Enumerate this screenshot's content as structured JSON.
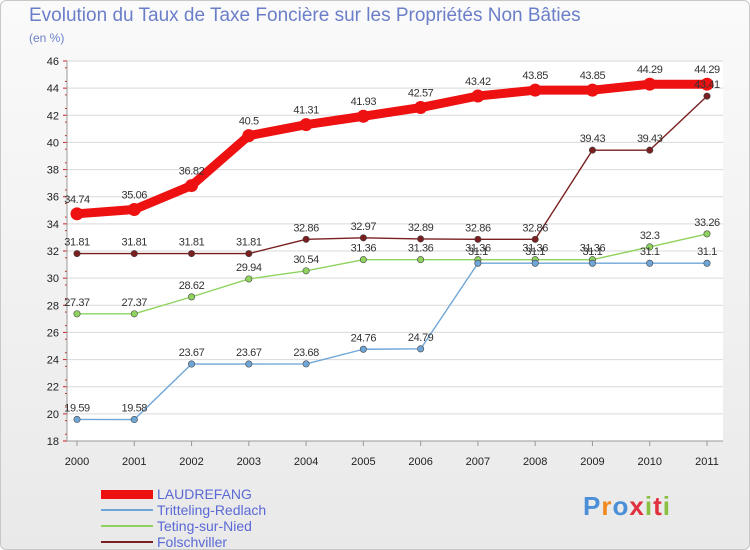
{
  "header": {
    "title": "Evolution du Taux de Taxe Foncière sur les Propriétés Non Bâties",
    "subtitle": "(en %)"
  },
  "logo": {
    "text": "Proxiti",
    "colors": [
      "#4a8fd8",
      "#f08a20",
      "#4a8fd8",
      "#e03040",
      "#8ac040",
      "#e03040",
      "#8ac040"
    ]
  },
  "chart_data": {
    "type": "line",
    "title": "Evolution du Taux de Taxe Foncière sur les Propriétés Non Bâties",
    "ylabel": "(en %)",
    "xlabel": "",
    "ylim": [
      18,
      46
    ],
    "yticks": [
      18,
      20,
      22,
      24,
      26,
      28,
      30,
      32,
      34,
      36,
      38,
      40,
      42,
      44,
      46
    ],
    "grid": "horizontal",
    "x": [
      "2000",
      "2001",
      "2002",
      "2003",
      "2004",
      "2005",
      "2006",
      "2007",
      "2008",
      "2009",
      "2010",
      "2011"
    ],
    "series": [
      {
        "name": "Folschviller",
        "color": "#7a1f1f",
        "width": 1.4,
        "values": [
          31.81,
          31.81,
          31.81,
          31.81,
          32.86,
          32.97,
          32.89,
          32.86,
          32.86,
          39.43,
          39.43,
          43.41
        ],
        "labels": [
          "31.81",
          "31.81",
          "31.81",
          "31.81",
          "32.86",
          "32.97",
          "32.89",
          "32.86",
          "32.86",
          "39.43",
          "39.43",
          "43.41"
        ]
      },
      {
        "name": "Teting-sur-Nied",
        "color": "#8fd35e",
        "width": 1.4,
        "values": [
          27.37,
          27.37,
          28.62,
          29.94,
          30.54,
          31.36,
          31.36,
          31.36,
          31.36,
          31.36,
          32.3,
          33.26
        ],
        "labels": [
          "27.37",
          "27.37",
          "28.62",
          "29.94",
          "30.54",
          "31.36",
          "31.36",
          "31.36",
          "31.36",
          "31.36",
          "32.3",
          "33.26"
        ]
      },
      {
        "name": "Tritteling-Redlach",
        "color": "#6fa6d8",
        "width": 1.4,
        "values": [
          19.59,
          19.58,
          23.67,
          23.67,
          23.68,
          24.76,
          24.79,
          31.1,
          31.1,
          31.1,
          31.1,
          31.1
        ],
        "labels": [
          "19.59",
          "19.58",
          "23.67",
          "23.67",
          "23.68",
          "24.76",
          "24.79",
          "31.1",
          "31.1",
          "31.1",
          "31.1",
          "31.1"
        ]
      },
      {
        "name": "LAUDREFANG",
        "color": "#ee1111",
        "width": 9,
        "values": [
          34.74,
          35.06,
          36.82,
          40.5,
          41.31,
          41.93,
          42.57,
          43.42,
          43.85,
          43.85,
          44.29,
          44.29
        ],
        "labels": [
          "34.74",
          "35.06",
          "36.82",
          "40.5",
          "41.31",
          "41.93",
          "42.57",
          "43.42",
          "43.85",
          "43.85",
          "44.29",
          "44.29"
        ]
      }
    ]
  },
  "legend": [
    {
      "name": "LAUDREFANG",
      "color": "#ee1111",
      "thickness": 9
    },
    {
      "name": "Tritteling-Redlach",
      "color": "#6fa6d8",
      "thickness": 2
    },
    {
      "name": "Teting-sur-Nied",
      "color": "#8fd35e",
      "thickness": 2
    },
    {
      "name": "Folschviller",
      "color": "#7a1f1f",
      "thickness": 2
    }
  ]
}
